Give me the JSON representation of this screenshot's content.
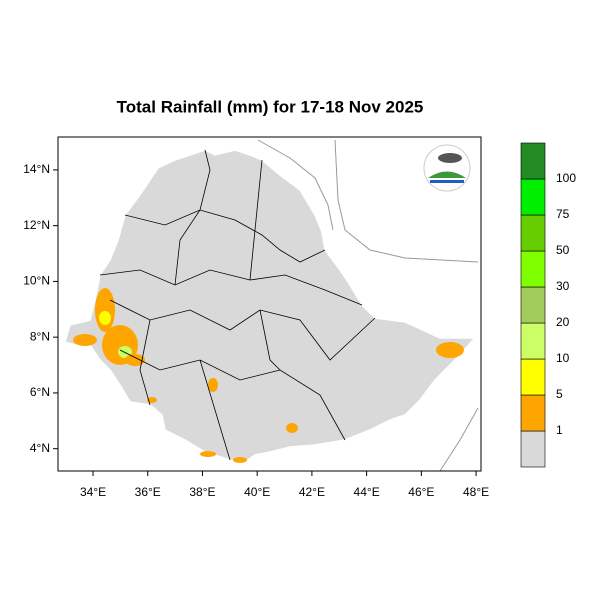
{
  "chart_data": {
    "type": "map",
    "title": "Total Rainfall (mm) for 17-18 Nov 2025",
    "xlim": [
      32.72,
      48.18
    ],
    "ylim": [
      3.2,
      15.18
    ],
    "xticks": [
      {
        "value": 34,
        "label": "34°E"
      },
      {
        "value": 36,
        "label": "36°E"
      },
      {
        "value": 38,
        "label": "38°E"
      },
      {
        "value": 40,
        "label": "40°E"
      },
      {
        "value": 42,
        "label": "42°E"
      },
      {
        "value": 44,
        "label": "44°E"
      },
      {
        "value": 46,
        "label": "46°E"
      },
      {
        "value": 48,
        "label": "48°E"
      }
    ],
    "yticks": [
      {
        "value": 4,
        "label": "4°N"
      },
      {
        "value": 6,
        "label": "6°N"
      },
      {
        "value": 8,
        "label": "8°N"
      },
      {
        "value": 10,
        "label": "10°N"
      },
      {
        "value": 12,
        "label": "12°N"
      },
      {
        "value": 14,
        "label": "14°N"
      }
    ],
    "colorbar": {
      "levels": [
        1,
        5,
        10,
        20,
        30,
        50,
        75,
        100
      ],
      "colors": [
        "#d9d9d9",
        "#ffa500",
        "#ffff00",
        "#ccff66",
        "#a2cd5a",
        "#7fff00",
        "#66cd00",
        "#00ee00",
        "#228b22"
      ]
    }
  }
}
